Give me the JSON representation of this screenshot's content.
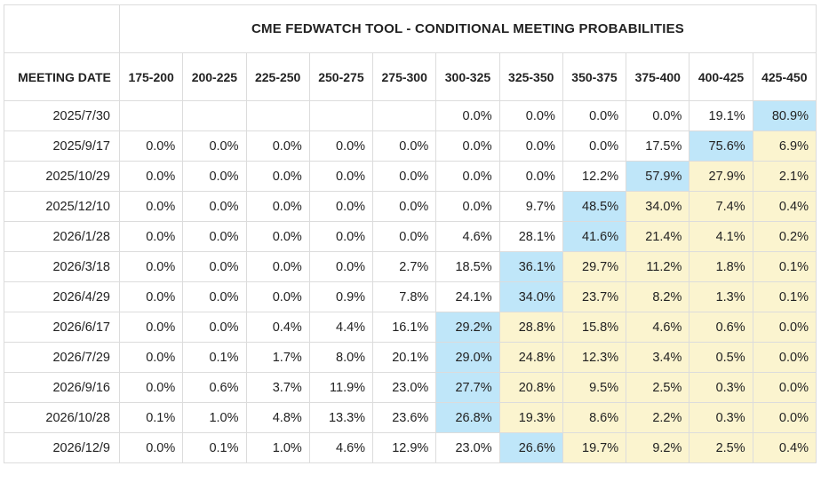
{
  "colors": {
    "current_target": "#bfe6f9",
    "above_current": "#fbf4cf",
    "default": "#ffffff",
    "grid": "#dcdcdc"
  },
  "chart_data": {
    "type": "table",
    "title": "CME FEDWATCH TOOL - CONDITIONAL MEETING PROBABILITIES",
    "row_header_label": "MEETING DATE",
    "columns": [
      "175-200",
      "200-225",
      "225-250",
      "250-275",
      "275-300",
      "300-325",
      "325-350",
      "350-375",
      "375-400",
      "400-425",
      "425-450"
    ],
    "current_target_column": "425-450",
    "rows": [
      {
        "date": "2025/7/30",
        "values": [
          "",
          "",
          "",
          "",
          "",
          "0.0%",
          "0.0%",
          "0.0%",
          "0.0%",
          "19.1%",
          "80.9%"
        ],
        "highlight": 10
      },
      {
        "date": "2025/9/17",
        "values": [
          "0.0%",
          "0.0%",
          "0.0%",
          "0.0%",
          "0.0%",
          "0.0%",
          "0.0%",
          "0.0%",
          "17.5%",
          "75.6%",
          "6.9%"
        ],
        "highlight": 9
      },
      {
        "date": "2025/10/29",
        "values": [
          "0.0%",
          "0.0%",
          "0.0%",
          "0.0%",
          "0.0%",
          "0.0%",
          "0.0%",
          "12.2%",
          "57.9%",
          "27.9%",
          "2.1%"
        ],
        "highlight": 8
      },
      {
        "date": "2025/12/10",
        "values": [
          "0.0%",
          "0.0%",
          "0.0%",
          "0.0%",
          "0.0%",
          "0.0%",
          "9.7%",
          "48.5%",
          "34.0%",
          "7.4%",
          "0.4%"
        ],
        "highlight": 7
      },
      {
        "date": "2026/1/28",
        "values": [
          "0.0%",
          "0.0%",
          "0.0%",
          "0.0%",
          "0.0%",
          "4.6%",
          "28.1%",
          "41.6%",
          "21.4%",
          "4.1%",
          "0.2%"
        ],
        "highlight": 7
      },
      {
        "date": "2026/3/18",
        "values": [
          "0.0%",
          "0.0%",
          "0.0%",
          "0.0%",
          "2.7%",
          "18.5%",
          "36.1%",
          "29.7%",
          "11.2%",
          "1.8%",
          "0.1%"
        ],
        "highlight": 6
      },
      {
        "date": "2026/4/29",
        "values": [
          "0.0%",
          "0.0%",
          "0.0%",
          "0.9%",
          "7.8%",
          "24.1%",
          "34.0%",
          "23.7%",
          "8.2%",
          "1.3%",
          "0.1%"
        ],
        "highlight": 6
      },
      {
        "date": "2026/6/17",
        "values": [
          "0.0%",
          "0.0%",
          "0.4%",
          "4.4%",
          "16.1%",
          "29.2%",
          "28.8%",
          "15.8%",
          "4.6%",
          "0.6%",
          "0.0%"
        ],
        "highlight": 5
      },
      {
        "date": "2026/7/29",
        "values": [
          "0.0%",
          "0.1%",
          "1.7%",
          "8.0%",
          "20.1%",
          "29.0%",
          "24.8%",
          "12.3%",
          "3.4%",
          "0.5%",
          "0.0%"
        ],
        "highlight": 5
      },
      {
        "date": "2026/9/16",
        "values": [
          "0.0%",
          "0.6%",
          "3.7%",
          "11.9%",
          "23.0%",
          "27.7%",
          "20.8%",
          "9.5%",
          "2.5%",
          "0.3%",
          "0.0%"
        ],
        "highlight": 5
      },
      {
        "date": "2026/10/28",
        "values": [
          "0.1%",
          "1.0%",
          "4.8%",
          "13.3%",
          "23.6%",
          "26.8%",
          "19.3%",
          "8.6%",
          "2.2%",
          "0.3%",
          "0.0%"
        ],
        "highlight": 5
      },
      {
        "date": "2026/12/9",
        "values": [
          "0.0%",
          "0.1%",
          "1.0%",
          "4.6%",
          "12.9%",
          "23.0%",
          "26.6%",
          "19.7%",
          "9.2%",
          "2.5%",
          "0.4%"
        ],
        "highlight": 6
      }
    ]
  }
}
